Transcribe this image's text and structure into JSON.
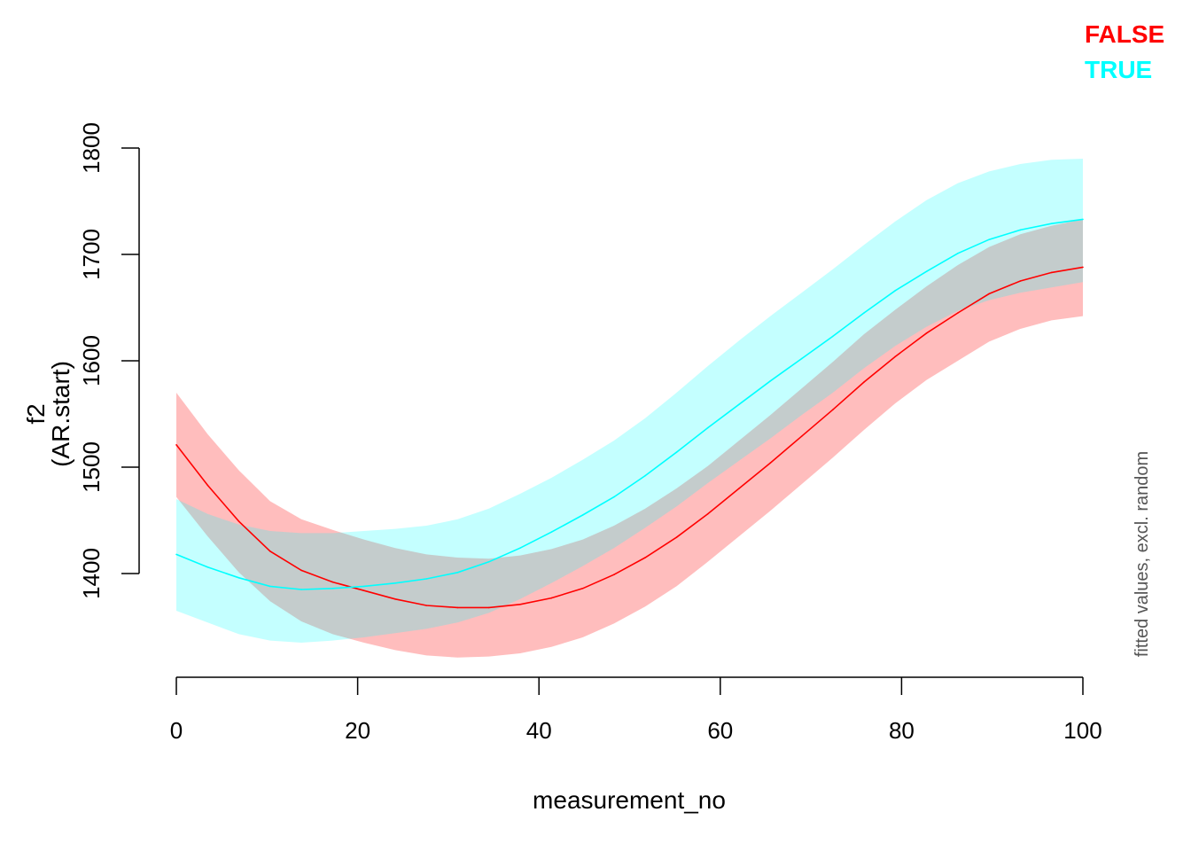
{
  "chart_data": {
    "type": "line",
    "xlabel": "measurement_no",
    "ylabel_line1": "f2",
    "ylabel_line2": "(AR.start)",
    "side_note": "fitted values, excl. random",
    "xlim": [
      0,
      100
    ],
    "ylim": [
      1305,
      1800
    ],
    "x_ticks": [
      0,
      20,
      40,
      60,
      80,
      100
    ],
    "y_ticks": [
      1400,
      1500,
      1600,
      1700,
      1800
    ],
    "grid": false,
    "legend_position": "top-right",
    "x": [
      0,
      3.45,
      6.9,
      10.34,
      13.79,
      17.24,
      20.69,
      24.14,
      27.59,
      31.03,
      34.48,
      37.93,
      41.38,
      44.83,
      48.28,
      51.72,
      55.17,
      58.62,
      62.07,
      65.52,
      68.97,
      72.41,
      75.86,
      79.31,
      82.76,
      86.21,
      89.66,
      93.1,
      96.55,
      100
    ],
    "series": [
      {
        "name": "FALSE",
        "line_color": "#ff0000",
        "band_color": "rgba(255, 0, 0, 0.26)",
        "fit": [
          1521,
          1483,
          1449,
          1421,
          1403,
          1392,
          1384,
          1376,
          1370,
          1368,
          1368,
          1371,
          1377,
          1386,
          1399,
          1415,
          1434,
          1456,
          1480,
          1504,
          1529,
          1554,
          1580,
          1604,
          1626,
          1645,
          1663,
          1675,
          1683,
          1688
        ],
        "upper": [
          1570,
          1531,
          1497,
          1468,
          1451,
          1441,
          1432,
          1424,
          1418,
          1415,
          1414,
          1417,
          1423,
          1432,
          1445,
          1461,
          1480,
          1501,
          1525,
          1549,
          1574,
          1599,
          1625,
          1648,
          1670,
          1690,
          1707,
          1719,
          1727,
          1733
        ],
        "lower": [
          1472,
          1435,
          1401,
          1374,
          1355,
          1343,
          1335,
          1328,
          1323,
          1321,
          1322,
          1325,
          1331,
          1340,
          1353,
          1369,
          1388,
          1411,
          1435,
          1459,
          1484,
          1509,
          1535,
          1560,
          1582,
          1600,
          1618,
          1630,
          1638,
          1642
        ]
      },
      {
        "name": "TRUE",
        "line_color": "#00ffff",
        "band_color": "rgba(0, 255, 255, 0.23)",
        "fit": [
          1418,
          1406,
          1396,
          1388,
          1385,
          1386,
          1388,
          1391,
          1395,
          1401,
          1411,
          1424,
          1439,
          1455,
          1472,
          1492,
          1514,
          1537,
          1559,
          1581,
          1602,
          1623,
          1645,
          1666,
          1684,
          1701,
          1714,
          1723,
          1729,
          1733
        ],
        "upper": [
          1470,
          1456,
          1446,
          1440,
          1438,
          1438,
          1440,
          1442,
          1445,
          1451,
          1461,
          1475,
          1490,
          1507,
          1525,
          1546,
          1570,
          1595,
          1619,
          1642,
          1664,
          1686,
          1709,
          1731,
          1751,
          1767,
          1778,
          1785,
          1789,
          1790
        ],
        "lower": [
          1365,
          1354,
          1343,
          1337,
          1335,
          1337,
          1340,
          1344,
          1348,
          1354,
          1363,
          1376,
          1391,
          1407,
          1424,
          1443,
          1463,
          1485,
          1506,
          1527,
          1549,
          1570,
          1593,
          1614,
          1632,
          1647,
          1657,
          1664,
          1669,
          1674
        ]
      }
    ]
  }
}
